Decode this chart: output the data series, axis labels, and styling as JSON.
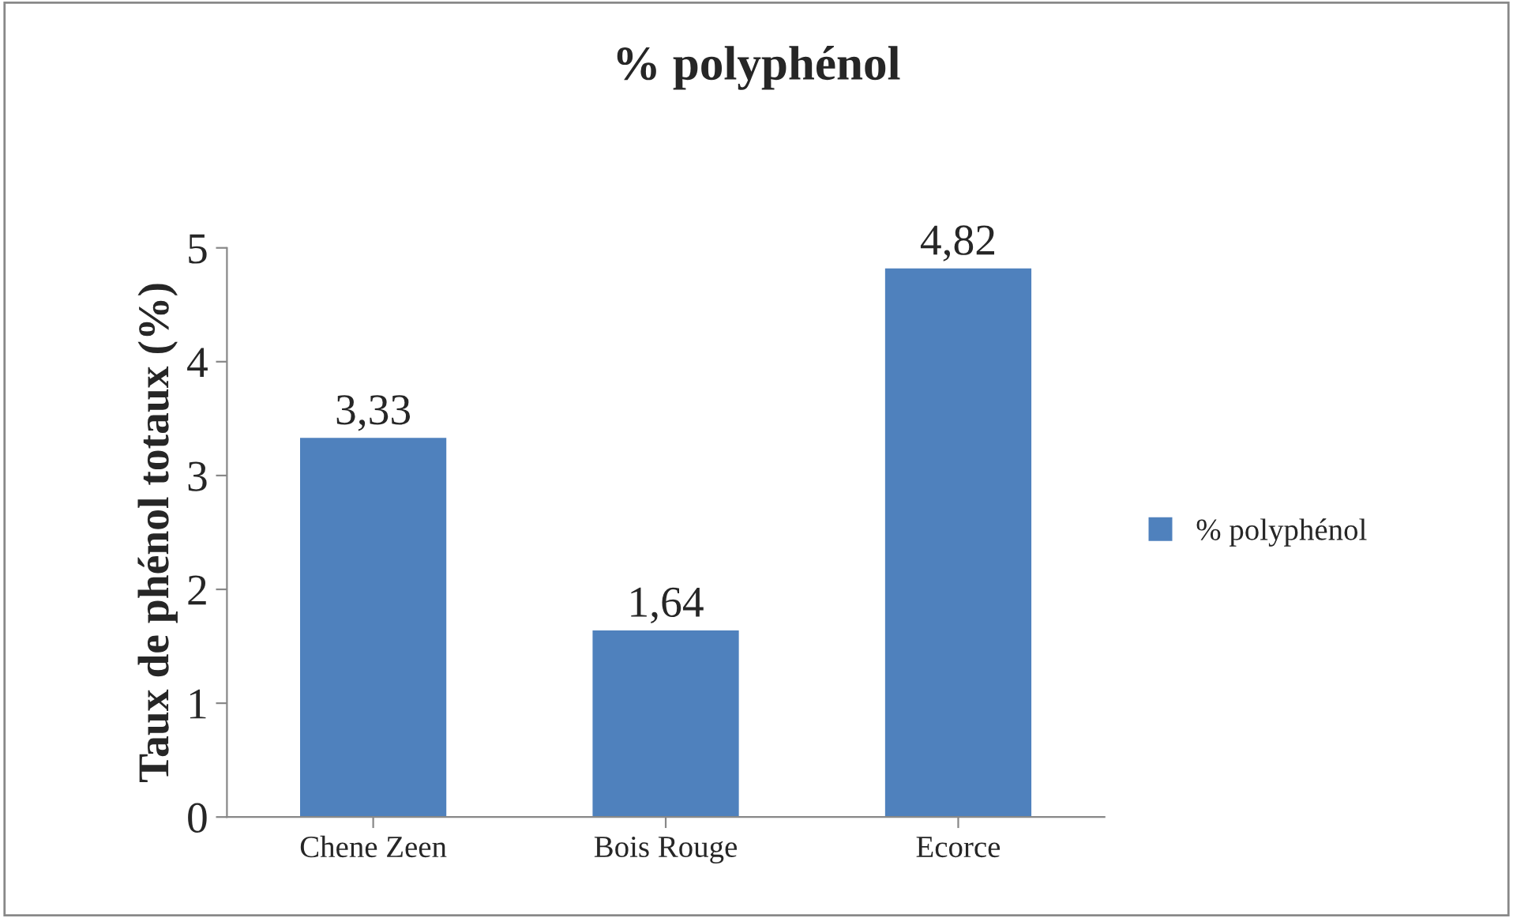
{
  "chart_data": {
    "type": "bar",
    "title": "% polyphénol",
    "ylabel": "Taux de phénol totaux (%)",
    "categories": [
      "Chene Zeen",
      "Bois Rouge",
      "Ecorce"
    ],
    "series": [
      {
        "name": "% polyphénol",
        "color": "#4f81bd",
        "values": [
          3.33,
          1.64,
          4.82
        ],
        "value_labels": [
          "3,33",
          "1,64",
          "4,82"
        ]
      }
    ],
    "ylim": [
      0,
      5
    ],
    "yticks": [
      0,
      1,
      2,
      3,
      4,
      5
    ],
    "grid": false,
    "legend": "right"
  }
}
